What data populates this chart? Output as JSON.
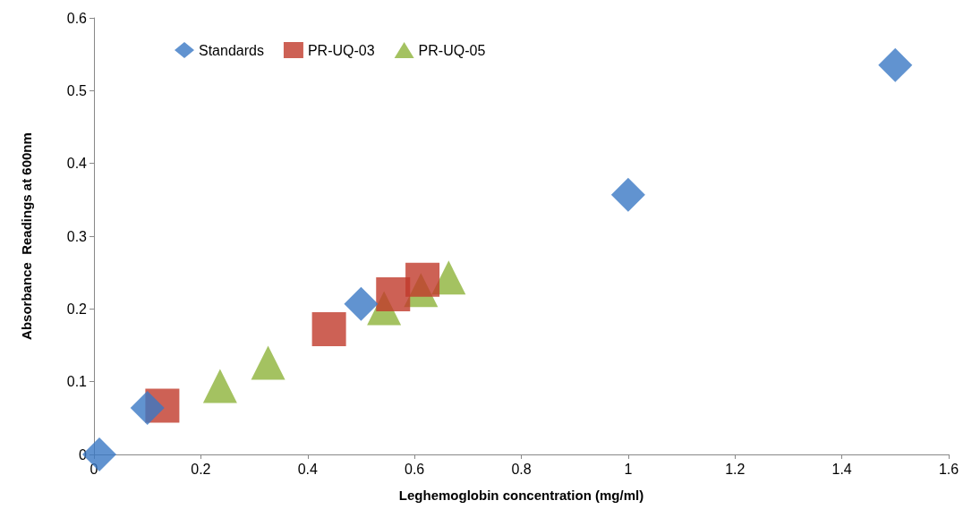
{
  "chart_data": {
    "type": "scatter",
    "xlabel": "Leghemoglobin concentration (mg/ml)",
    "ylabel": "Absorbance  Readings at 600nm",
    "xlim": [
      0,
      1.6
    ],
    "xticks": [
      0,
      0.2,
      0.4,
      0.6,
      0.8,
      1,
      1.2,
      1.4,
      1.6
    ],
    "ylim": [
      0,
      0.6
    ],
    "yticks": [
      0,
      0.1,
      0.2,
      0.3,
      0.4,
      0.5,
      0.6
    ],
    "grid": false,
    "legend": "top left",
    "series": [
      {
        "name": "Standards",
        "color": "#3a78c4",
        "marker": "diamond",
        "x": [
          0.01,
          0.1,
          0.5,
          1.0,
          1.5
        ],
        "values": [
          0,
          0.064,
          0.207,
          0.357,
          0.535
        ]
      },
      {
        "name": "PR-UQ-03",
        "color": "#c0392b",
        "marker": "square",
        "x": [
          0.128,
          0.44,
          0.56,
          0.615
        ],
        "values": [
          0.067,
          0.172,
          0.22,
          0.24
        ]
      },
      {
        "name": "PR-UQ-05",
        "color": "#8db33a",
        "marker": "triangle",
        "x": [
          0.236,
          0.326,
          0.543,
          0.612,
          0.664
        ],
        "values": [
          0.094,
          0.126,
          0.201,
          0.226,
          0.243
        ]
      }
    ]
  }
}
